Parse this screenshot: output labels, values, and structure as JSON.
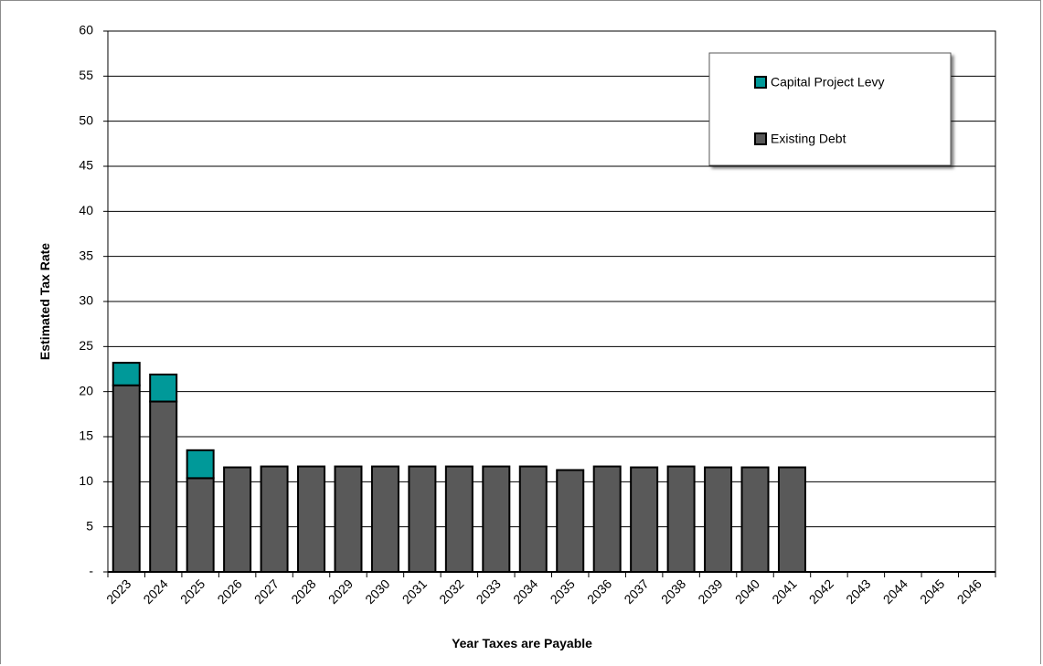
{
  "chart_data": {
    "type": "bar",
    "stacked": true,
    "title": "",
    "xlabel": "Year Taxes are Payable",
    "ylabel": "Estimated Tax Rate",
    "ylim": [
      0,
      60
    ],
    "yticks": [
      0,
      5,
      10,
      15,
      20,
      25,
      30,
      35,
      40,
      45,
      50,
      55,
      60
    ],
    "yticklabels": [
      "-",
      "5",
      "10",
      "15",
      "20",
      "25",
      "30",
      "35",
      "40",
      "45",
      "50",
      "55",
      "60"
    ],
    "grid": true,
    "legend_position": "top-right",
    "legend_order": [
      "Capital Project Levy",
      "Existing Debt"
    ],
    "categories": [
      "2023",
      "2024",
      "2025",
      "2026",
      "2027",
      "2028",
      "2029",
      "2030",
      "2031",
      "2032",
      "2033",
      "2034",
      "2035",
      "2036",
      "2037",
      "2038",
      "2039",
      "2040",
      "2041",
      "2042",
      "2043",
      "2044",
      "2045",
      "2046"
    ],
    "series": [
      {
        "name": "Existing Debt",
        "color": "#595959",
        "values": [
          20.7,
          18.9,
          10.4,
          11.6,
          11.7,
          11.7,
          11.7,
          11.7,
          11.7,
          11.7,
          11.7,
          11.7,
          11.3,
          11.7,
          11.6,
          11.7,
          11.6,
          11.6,
          11.6,
          0,
          0,
          0,
          0,
          0
        ]
      },
      {
        "name": "Capital Project Levy",
        "color": "#009999",
        "values": [
          2.5,
          3.0,
          3.1,
          0,
          0,
          0,
          0,
          0,
          0,
          0,
          0,
          0,
          0,
          0,
          0,
          0,
          0,
          0,
          0,
          0,
          0,
          0,
          0,
          0
        ]
      }
    ]
  }
}
